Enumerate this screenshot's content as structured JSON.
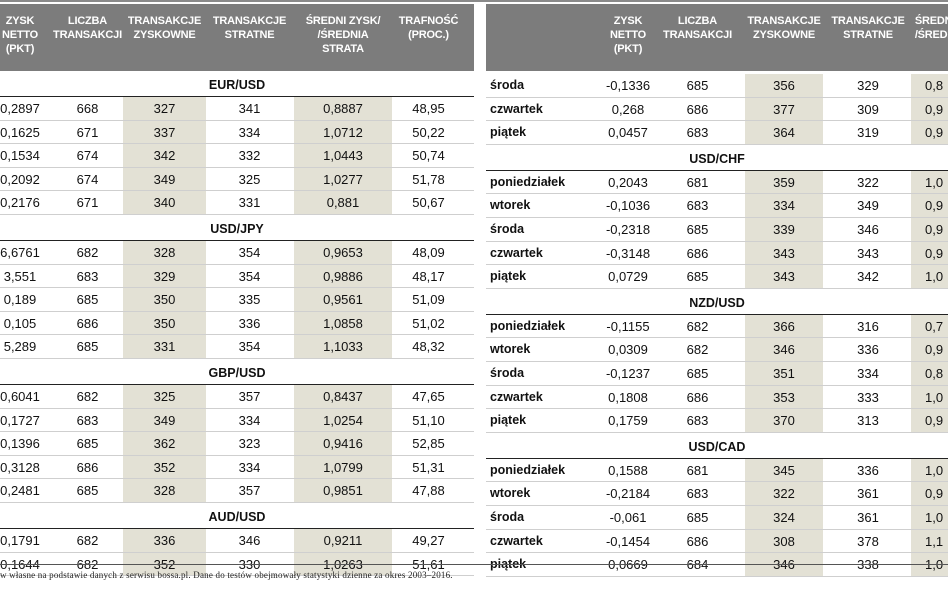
{
  "left_headers": [
    "ZYSK\nNETTO\n(PKT)",
    "LICZBA\nTRANSAKCJI",
    "TRANSAKCJE\nZYSKOWNE",
    "TRANSAKCJE\nSTRATNE",
    "ŚREDNI ZYSK/\n/ŚREDNIA\nSTRATA",
    "TRAFNOŚĆ\n(PROC.)"
  ],
  "right_headers": [
    "ZYSK\nNETTO\n(PKT)",
    "LICZBA\nTRANSAKCJI",
    "TRANSAKCJE\nZYSKOWNE",
    "TRANSAKCJE\nSTRATNE",
    "ŚREDNI\n/ŚREDN"
  ],
  "left_groups": [
    {
      "pair": "EUR/USD",
      "rows": [
        [
          "0,2897",
          "668",
          "327",
          "341",
          "0,8887",
          "48,95"
        ],
        [
          "0,1625",
          "671",
          "337",
          "334",
          "1,0712",
          "50,22"
        ],
        [
          "0,1534",
          "674",
          "342",
          "332",
          "1,0443",
          "50,74"
        ],
        [
          "0,2092",
          "674",
          "349",
          "325",
          "1,0277",
          "51,78"
        ],
        [
          "0,2176",
          "671",
          "340",
          "331",
          "0,881",
          "50,67"
        ]
      ]
    },
    {
      "pair": "USD/JPY",
      "rows": [
        [
          "6,6761",
          "682",
          "328",
          "354",
          "0,9653",
          "48,09"
        ],
        [
          "3,551",
          "683",
          "329",
          "354",
          "0,9886",
          "48,17"
        ],
        [
          "0,189",
          "685",
          "350",
          "335",
          "0,9561",
          "51,09"
        ],
        [
          "0,105",
          "686",
          "350",
          "336",
          "1,0858",
          "51,02"
        ],
        [
          "5,289",
          "685",
          "331",
          "354",
          "1,1033",
          "48,32"
        ]
      ]
    },
    {
      "pair": "GBP/USD",
      "rows": [
        [
          "0,6041",
          "682",
          "325",
          "357",
          "0,8437",
          "47,65"
        ],
        [
          "0,1727",
          "683",
          "349",
          "334",
          "1,0254",
          "51,10"
        ],
        [
          "0,1396",
          "685",
          "362",
          "323",
          "0,9416",
          "52,85"
        ],
        [
          "0,3128",
          "686",
          "352",
          "334",
          "1,0799",
          "51,31"
        ],
        [
          "0,2481",
          "685",
          "328",
          "357",
          "0,9851",
          "47,88"
        ]
      ]
    },
    {
      "pair": "AUD/USD",
      "rows": [
        [
          "0,1791",
          "682",
          "336",
          "346",
          "0,9211",
          "49,27"
        ],
        [
          "0,1644",
          "682",
          "352",
          "330",
          "1,0263",
          "51,61"
        ]
      ]
    }
  ],
  "right_groups": [
    {
      "pair": "",
      "rows": [
        [
          "środa",
          "-0,1336",
          "685",
          "356",
          "329",
          "0,8"
        ],
        [
          "czwartek",
          "0,268",
          "686",
          "377",
          "309",
          "0,9"
        ],
        [
          "piątek",
          "0,0457",
          "683",
          "364",
          "319",
          "0,9"
        ]
      ]
    },
    {
      "pair": "USD/CHF",
      "rows": [
        [
          "poniedziałek",
          "0,2043",
          "681",
          "359",
          "322",
          "1,0"
        ],
        [
          "wtorek",
          "-0,1036",
          "683",
          "334",
          "349",
          "0,9"
        ],
        [
          "środa",
          "-0,2318",
          "685",
          "339",
          "346",
          "0,9"
        ],
        [
          "czwartek",
          "-0,3148",
          "686",
          "343",
          "343",
          "0,9"
        ],
        [
          "piątek",
          "0,0729",
          "685",
          "343",
          "342",
          "1,0"
        ]
      ]
    },
    {
      "pair": "NZD/USD",
      "rows": [
        [
          "poniedziałek",
          "-0,1155",
          "682",
          "366",
          "316",
          "0,7"
        ],
        [
          "wtorek",
          "0,0309",
          "682",
          "346",
          "336",
          "0,9"
        ],
        [
          "środa",
          "-0,1237",
          "685",
          "351",
          "334",
          "0,8"
        ],
        [
          "czwartek",
          "0,1808",
          "686",
          "353",
          "333",
          "1,0"
        ],
        [
          "piątek",
          "0,1759",
          "683",
          "370",
          "313",
          "0,9"
        ]
      ]
    },
    {
      "pair": "USD/CAD",
      "rows": [
        [
          "poniedziałek",
          "0,1588",
          "681",
          "345",
          "336",
          "1,0"
        ],
        [
          "wtorek",
          "-0,2184",
          "683",
          "322",
          "361",
          "0,9"
        ],
        [
          "środa",
          "-0,061",
          "685",
          "324",
          "361",
          "1,0"
        ],
        [
          "czwartek",
          "-0,1454",
          "686",
          "308",
          "378",
          "1,1"
        ],
        [
          "piątek",
          "0,0669",
          "684",
          "346",
          "338",
          "1,0"
        ]
      ]
    }
  ],
  "footnote": "w własne na podstawie danych z serwisu bossa.pl. Dane do testów obejmowały statystyki dzienne za okres 2003–2016.",
  "colors": {
    "header_bg": "#7c7c7c",
    "shade": "#e3e1d5",
    "text": "#111111"
  }
}
